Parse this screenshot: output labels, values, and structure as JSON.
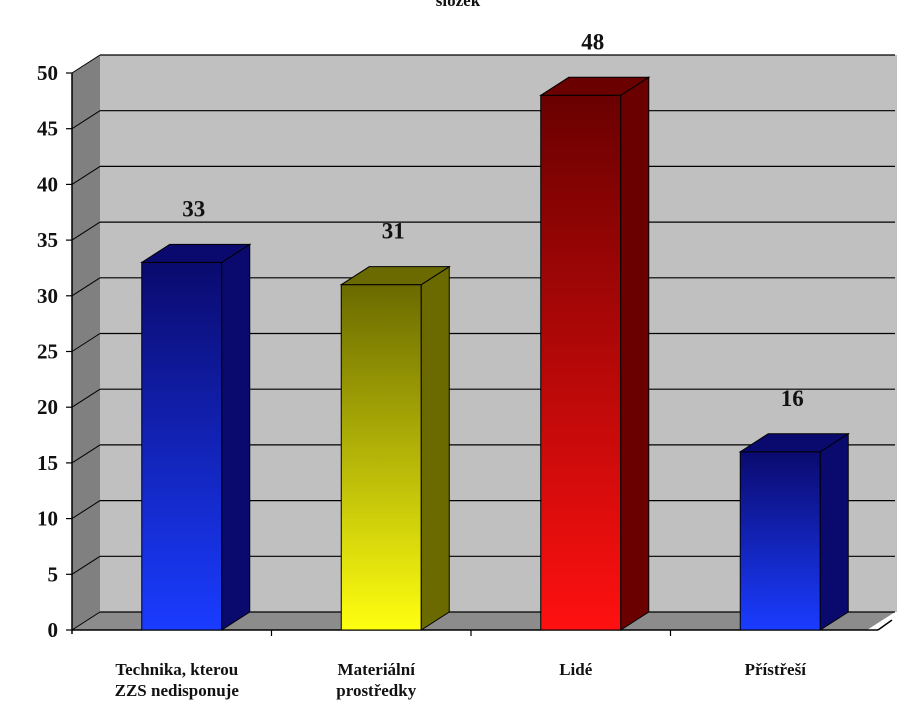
{
  "chart_data": {
    "type": "bar",
    "title": "složek",
    "categories": [
      "Technika, kterou\nZZS nedisponuje",
      "Materiální\nprostředky",
      "Lidé",
      "Přístřeší"
    ],
    "values": [
      33,
      31,
      48,
      16
    ],
    "value_labels": [
      "33",
      "31",
      "48",
      "16"
    ],
    "ylim": [
      0,
      50
    ],
    "yticks": [
      "0",
      "5",
      "10",
      "15",
      "20",
      "25",
      "30",
      "35",
      "40",
      "45",
      "50"
    ],
    "grid": true,
    "legend": "none",
    "colors": {
      "bar_0": [
        "#0a0a6e",
        "#1a3cff"
      ],
      "bar_1": [
        "#6a6a00",
        "#ffff10"
      ],
      "bar_2": [
        "#6a0000",
        "#ff1010"
      ],
      "bar_3": [
        "#0a0a6e",
        "#1a3cff"
      ],
      "wall": "#c0c0c0",
      "floor": "#8c8c8c"
    }
  }
}
